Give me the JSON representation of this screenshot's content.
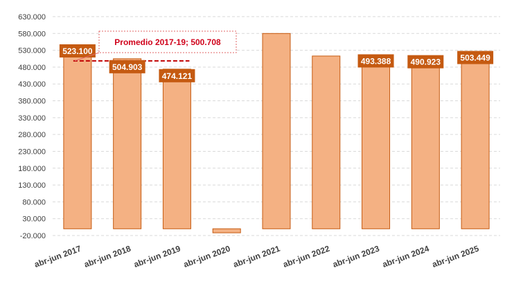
{
  "chart_data": {
    "type": "bar",
    "title": "",
    "xlabel": "",
    "ylabel": "",
    "categories": [
      "abr-jun 2017",
      "abr-jun 2018",
      "abr-jun 2019",
      "abr-jun 2020",
      "abr-jun 2021",
      "abr-jun 2022",
      "abr-jun 2023",
      "abr-jun 2024",
      "abr-jun 2025"
    ],
    "values": [
      523100,
      504903,
      474121,
      -12000,
      580000,
      513000,
      493388,
      490923,
      503449
    ],
    "data_labels": [
      "523.100",
      "504.903",
      "474.121",
      "",
      "",
      "",
      "493.388",
      "490.923",
      "503.449"
    ],
    "ylim": [
      -20000,
      630000
    ],
    "y_ticks": [
      -20000,
      30000,
      80000,
      130000,
      180000,
      230000,
      280000,
      330000,
      380000,
      430000,
      480000,
      530000,
      580000,
      630000
    ],
    "y_tick_labels": [
      "-20.000",
      "30.000",
      "80.000",
      "130.000",
      "180.000",
      "230.000",
      "280.000",
      "330.000",
      "380.000",
      "430.000",
      "480.000",
      "530.000",
      "580.000",
      "630.000"
    ],
    "grid": true,
    "reference_line": {
      "label": "Promedio 2017-19; 500.708",
      "value": 500708,
      "spans_categories": [
        "abr-jun 2017",
        "abr-jun 2019"
      ]
    },
    "colors": {
      "bar_fill": "#F4B183",
      "bar_stroke": "#C55A11",
      "label_bg": "#C55A11",
      "label_text": "#FFFFFF",
      "reference_line": "#C00000",
      "callout_text": "#D0021B",
      "callout_border": "#E06666",
      "grid": "#D9D9D9",
      "axis_text": "#404040"
    }
  }
}
